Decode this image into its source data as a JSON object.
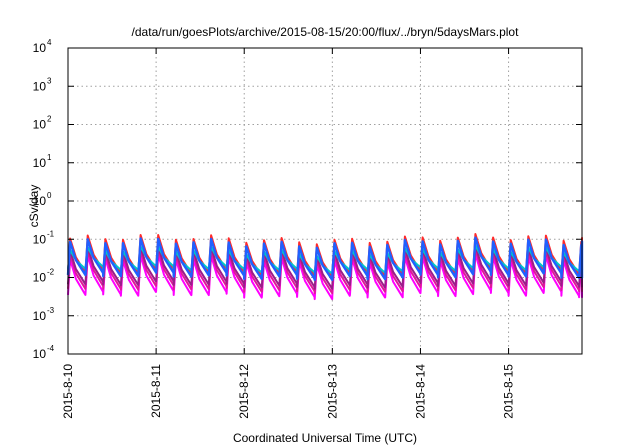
{
  "chart_data": {
    "type": "line",
    "title": "/data/run/goesPlots/archive/2015-08-15/20:00/flux/../bryn/5daysMars.plot",
    "xlabel": "Coordinated Universal Time (UTC)",
    "ylabel": "cSv/day",
    "y_scale": "log",
    "ylim": [
      0.0001,
      10000
    ],
    "y_ticks": [
      {
        "base": "10",
        "exp": "-4"
      },
      {
        "base": "10",
        "exp": "-3"
      },
      {
        "base": "10",
        "exp": "-2"
      },
      {
        "base": "10",
        "exp": "-1"
      },
      {
        "base": "10",
        "exp": "0"
      },
      {
        "base": "10",
        "exp": "1"
      },
      {
        "base": "10",
        "exp": "2"
      },
      {
        "base": "10",
        "exp": "3"
      },
      {
        "base": "10",
        "exp": "4"
      }
    ],
    "x_range": [
      "2015-08-10T00:00",
      "2015-08-15T20:00"
    ],
    "x_ticks": [
      "2015-8-10",
      "2015-8-11",
      "2015-8-12",
      "2015-8-13",
      "2015-8-14",
      "2015-8-15"
    ],
    "grid": true,
    "legend": "none",
    "pattern": {
      "cycle_hours": 4.8,
      "note": "sawtooth: sharp rise then decay each cycle"
    },
    "series": [
      {
        "color": "#ff00ff",
        "peak": 0.03,
        "trough": 0.0035
      },
      {
        "color": "#e0189a",
        "peak": 0.04,
        "trough": 0.005
      },
      {
        "color": "#9b1d8a",
        "peak": 0.05,
        "trough": 0.0065
      },
      {
        "color": "#ff2a2a",
        "peak": 0.1,
        "trough": 0.013
      },
      {
        "color": "#00c8c8",
        "peak": 0.05,
        "trough": 0.016
      },
      {
        "color": "#2060ff",
        "peak": 0.08,
        "trough": 0.011
      }
    ],
    "colors": {
      "axis": "#000000",
      "grid": "#a0a0a0"
    }
  }
}
